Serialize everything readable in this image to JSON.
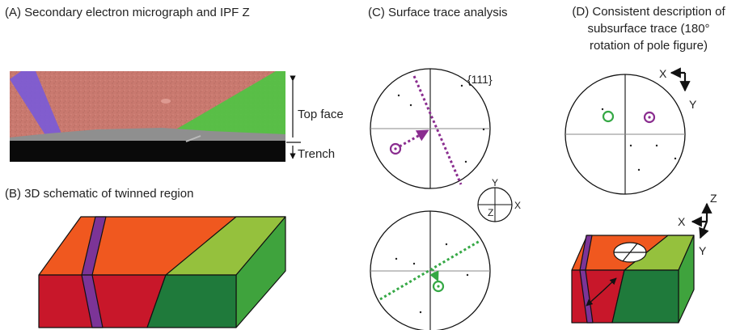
{
  "panels": {
    "a": {
      "title": "(A) Secondary electron micrograph and IPF Z",
      "top_face": "Top face",
      "trench": "Trench"
    },
    "b": {
      "title": "(B) 3D schematic of twinned region"
    },
    "c": {
      "title": "(C) Surface trace analysis",
      "pole_label": "{111}",
      "axis_x": "X",
      "axis_y": "Y",
      "axis_z": "Z"
    },
    "d": {
      "title_line1": "(D) Consistent description of",
      "title_line2": "subsurface trace (180°",
      "title_line3": "rotation of pole figure)",
      "axis_x": "X",
      "axis_y": "Y",
      "axis_z": "Z",
      "axis_x2": "X",
      "axis_y2": "Y"
    }
  },
  "colors": {
    "grain_red": "#c8172a",
    "grain_orange": "#f0581f",
    "twin_purple": "#7c3497",
    "grain_green_top": "#95c13d",
    "grain_green_side": "#1f7a3b",
    "grain_green_right": "#3fa33d",
    "marker_purple": "#8a2d8f",
    "marker_green": "#35a845"
  }
}
